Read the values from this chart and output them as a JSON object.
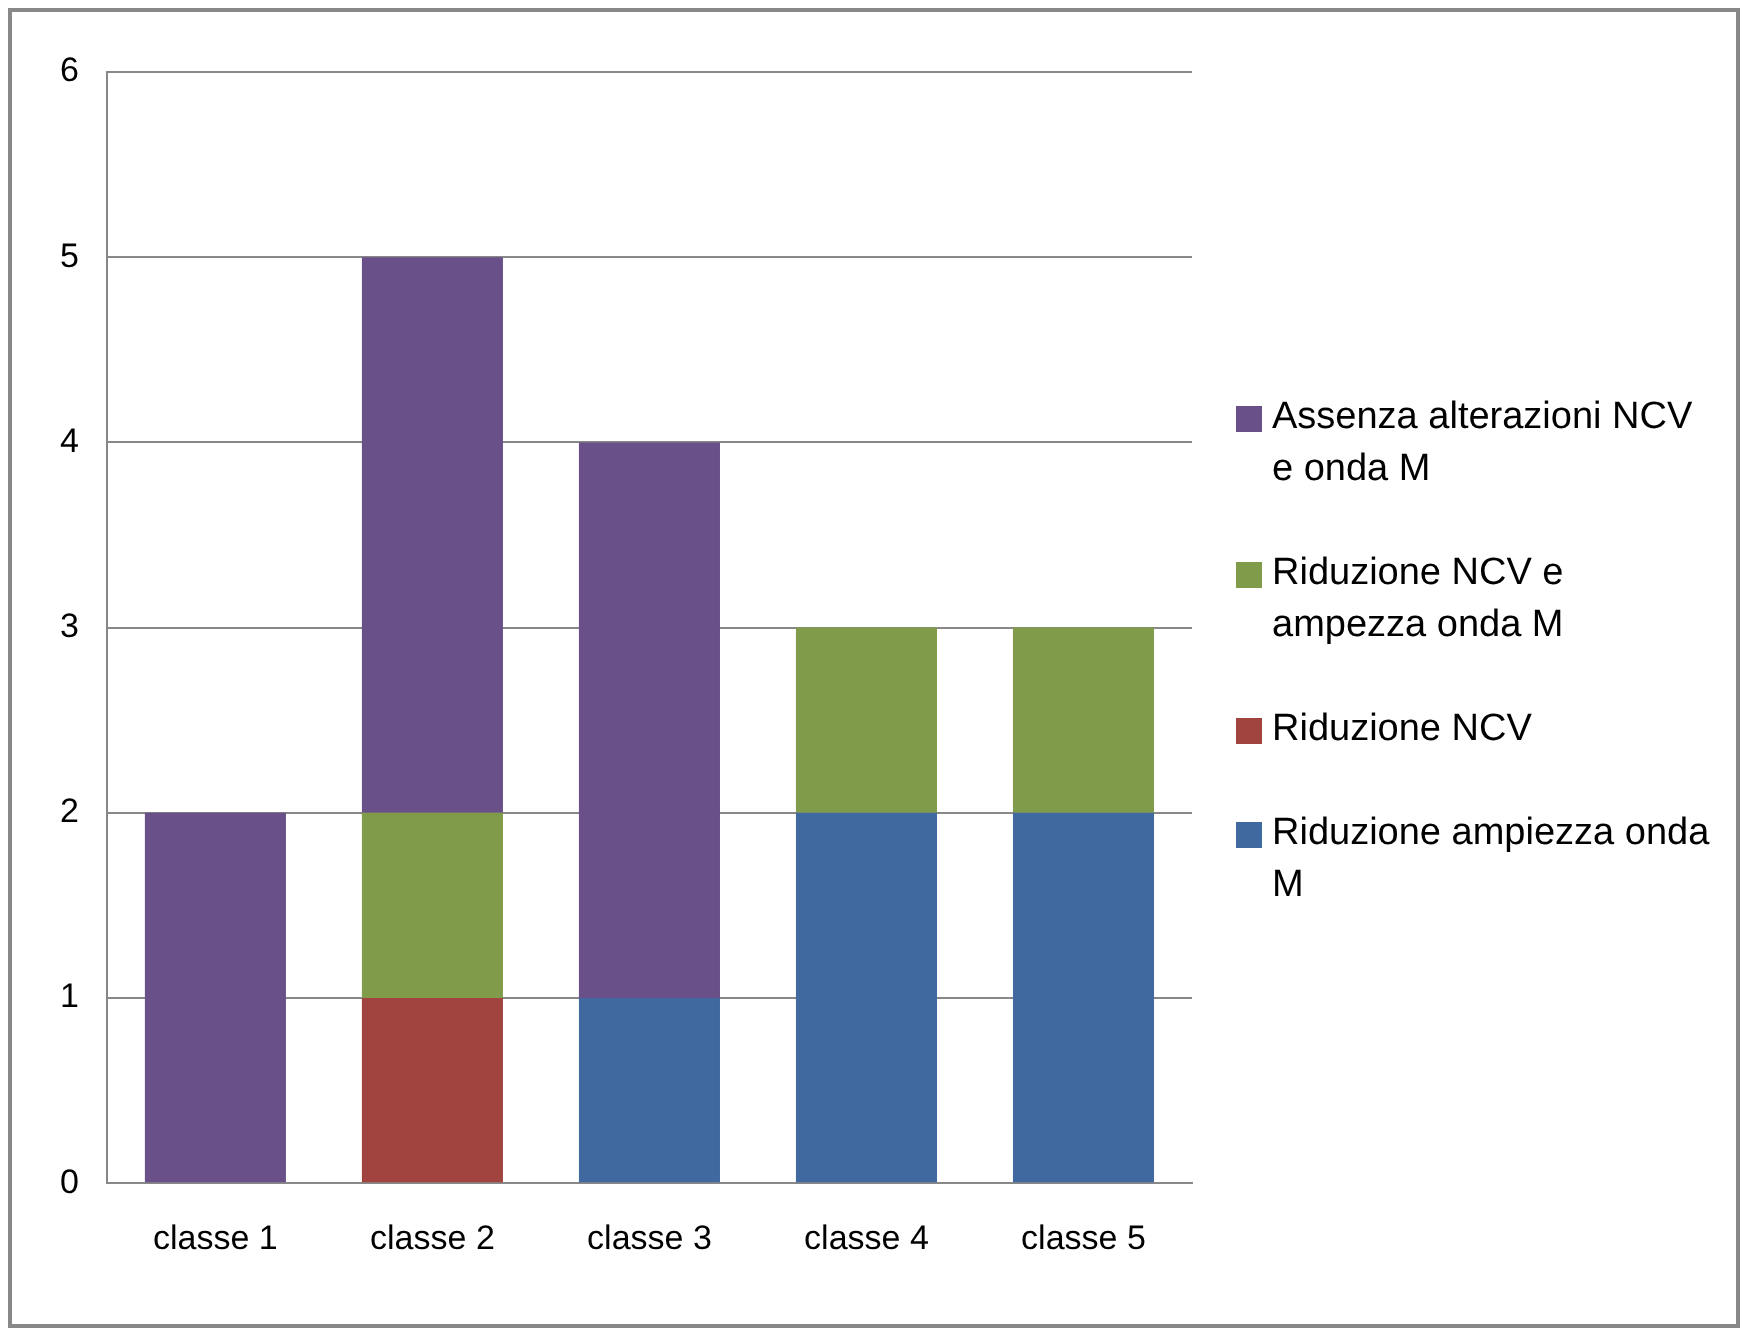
{
  "chart_data": {
    "type": "bar",
    "stacked": true,
    "categories": [
      "classe 1",
      "classe 2",
      "classe 3",
      "classe 4",
      "classe 5"
    ],
    "series": [
      {
        "name": "Riduzione ampiezza onda M",
        "color": "#4069a0",
        "values": [
          0,
          0,
          1,
          2,
          2
        ]
      },
      {
        "name": "Riduzione NCV",
        "color": "#a14440",
        "values": [
          0,
          1,
          0,
          0,
          0
        ]
      },
      {
        "name": "Riduzione NCV e ampezza onda M",
        "color": "#809c4a",
        "values": [
          0,
          1,
          0,
          1,
          1
        ]
      },
      {
        "name": "Assenza alterazioni NCV e onda M",
        "color": "#6a5088",
        "values": [
          2,
          3,
          3,
          0,
          0
        ]
      }
    ],
    "ylim": [
      0,
      6
    ],
    "yticks": [
      0,
      1,
      2,
      3,
      4,
      5,
      6
    ],
    "grid": "y",
    "legend": "right"
  }
}
